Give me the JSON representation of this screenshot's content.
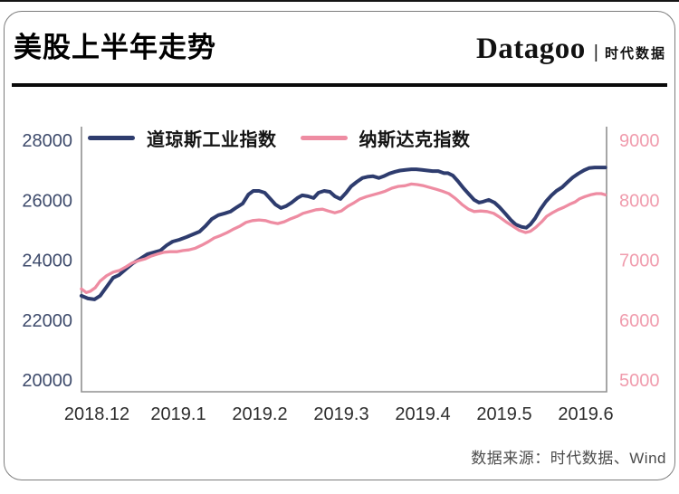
{
  "page": {
    "title": "美股上半年走势",
    "brand": {
      "name": "Datagoo",
      "separator": "|",
      "suffix": "时代数据"
    },
    "source_note": "数据来源：时代数据、Wind"
  },
  "chart_data": {
    "type": "line",
    "title": "美股上半年走势",
    "grid": false,
    "legend_position": "top",
    "legend": [
      {
        "label": "道琼斯工业指数",
        "color": "#2e3c6e"
      },
      {
        "label": "纳斯达克指数",
        "color": "#ee8ca2"
      }
    ],
    "x_axis": {
      "tick_labels": [
        "2018.12",
        "2019.1",
        "2019.2",
        "2019.3",
        "2019.4",
        "2019.5",
        "2019.6"
      ],
      "color": "#2d2d2d",
      "x_unit": "months offset from 2018.12 tick (0 = 2018.12, 6 = 2019.6)"
    },
    "y_axis_left": {
      "series": "道琼斯工业指数",
      "ticks": [
        20000,
        22000,
        24000,
        26000,
        28000
      ],
      "range": [
        20000,
        28000
      ],
      "color": "#3d4a6b"
    },
    "y_axis_right": {
      "series": "纳斯达克指数",
      "ticks": [
        5000,
        6000,
        7000,
        8000,
        9000
      ],
      "range": [
        5000,
        9000
      ],
      "color": "#f09cad"
    },
    "series": [
      {
        "name": "道琼斯工业指数",
        "axis": "left",
        "color": "#2e3c6e",
        "width": 4,
        "points": [
          [
            -0.19,
            22810
          ],
          [
            -0.11,
            22720
          ],
          [
            -0.03,
            22690
          ],
          [
            0.04,
            22810
          ],
          [
            0.12,
            23110
          ],
          [
            0.2,
            23410
          ],
          [
            0.27,
            23500
          ],
          [
            0.36,
            23710
          ],
          [
            0.44,
            23890
          ],
          [
            0.53,
            24040
          ],
          [
            0.62,
            24200
          ],
          [
            0.7,
            24260
          ],
          [
            0.78,
            24320
          ],
          [
            0.86,
            24500
          ],
          [
            0.93,
            24620
          ],
          [
            1.01,
            24680
          ],
          [
            1.1,
            24770
          ],
          [
            1.18,
            24860
          ],
          [
            1.26,
            24950
          ],
          [
            1.33,
            25130
          ],
          [
            1.41,
            25370
          ],
          [
            1.49,
            25500
          ],
          [
            1.57,
            25560
          ],
          [
            1.64,
            25620
          ],
          [
            1.72,
            25770
          ],
          [
            1.79,
            25890
          ],
          [
            1.86,
            26190
          ],
          [
            1.92,
            26310
          ],
          [
            1.99,
            26310
          ],
          [
            2.06,
            26250
          ],
          [
            2.12,
            26070
          ],
          [
            2.19,
            25860
          ],
          [
            2.26,
            25740
          ],
          [
            2.32,
            25800
          ],
          [
            2.39,
            25920
          ],
          [
            2.46,
            26070
          ],
          [
            2.52,
            26160
          ],
          [
            2.59,
            26130
          ],
          [
            2.66,
            26070
          ],
          [
            2.72,
            26250
          ],
          [
            2.79,
            26310
          ],
          [
            2.86,
            26280
          ],
          [
            2.92,
            26130
          ],
          [
            2.99,
            26040
          ],
          [
            3.06,
            26250
          ],
          [
            3.12,
            26460
          ],
          [
            3.19,
            26610
          ],
          [
            3.26,
            26740
          ],
          [
            3.32,
            26780
          ],
          [
            3.39,
            26800
          ],
          [
            3.46,
            26740
          ],
          [
            3.52,
            26800
          ],
          [
            3.59,
            26890
          ],
          [
            3.66,
            26950
          ],
          [
            3.72,
            26990
          ],
          [
            3.79,
            27010
          ],
          [
            3.86,
            27030
          ],
          [
            3.92,
            27030
          ],
          [
            3.99,
            27010
          ],
          [
            4.06,
            26990
          ],
          [
            4.12,
            26970
          ],
          [
            4.19,
            26970
          ],
          [
            4.26,
            26900
          ],
          [
            4.31,
            26900
          ],
          [
            4.37,
            26820
          ],
          [
            4.43,
            26640
          ],
          [
            4.5,
            26400
          ],
          [
            4.57,
            26190
          ],
          [
            4.63,
            26010
          ],
          [
            4.69,
            25920
          ],
          [
            4.74,
            25950
          ],
          [
            4.81,
            26010
          ],
          [
            4.88,
            25920
          ],
          [
            4.94,
            25770
          ],
          [
            5.01,
            25560
          ],
          [
            5.08,
            25340
          ],
          [
            5.14,
            25190
          ],
          [
            5.21,
            25110
          ],
          [
            5.27,
            25080
          ],
          [
            5.32,
            25190
          ],
          [
            5.38,
            25400
          ],
          [
            5.44,
            25680
          ],
          [
            5.51,
            25950
          ],
          [
            5.58,
            26160
          ],
          [
            5.64,
            26310
          ],
          [
            5.71,
            26430
          ],
          [
            5.78,
            26610
          ],
          [
            5.84,
            26760
          ],
          [
            5.91,
            26890
          ],
          [
            5.98,
            27000
          ],
          [
            6.04,
            27070
          ],
          [
            6.11,
            27090
          ],
          [
            6.18,
            27090
          ],
          [
            6.24,
            27090
          ]
        ]
      },
      {
        "name": "纳斯达克指数",
        "axis": "right",
        "color": "#ee8ca2",
        "width": 3.3,
        "points": [
          [
            -0.19,
            6520
          ],
          [
            -0.13,
            6460
          ],
          [
            -0.08,
            6480
          ],
          [
            -0.02,
            6540
          ],
          [
            0.04,
            6650
          ],
          [
            0.12,
            6740
          ],
          [
            0.2,
            6800
          ],
          [
            0.28,
            6830
          ],
          [
            0.36,
            6890
          ],
          [
            0.43,
            6950
          ],
          [
            0.51,
            6990
          ],
          [
            0.59,
            7020
          ],
          [
            0.67,
            7070
          ],
          [
            0.74,
            7100
          ],
          [
            0.82,
            7130
          ],
          [
            0.9,
            7140
          ],
          [
            0.98,
            7140
          ],
          [
            1.06,
            7160
          ],
          [
            1.13,
            7170
          ],
          [
            1.21,
            7200
          ],
          [
            1.29,
            7250
          ],
          [
            1.37,
            7310
          ],
          [
            1.44,
            7370
          ],
          [
            1.52,
            7410
          ],
          [
            1.6,
            7460
          ],
          [
            1.68,
            7520
          ],
          [
            1.76,
            7570
          ],
          [
            1.83,
            7630
          ],
          [
            1.91,
            7660
          ],
          [
            1.99,
            7670
          ],
          [
            2.07,
            7660
          ],
          [
            2.14,
            7630
          ],
          [
            2.22,
            7610
          ],
          [
            2.3,
            7640
          ],
          [
            2.38,
            7690
          ],
          [
            2.46,
            7730
          ],
          [
            2.53,
            7780
          ],
          [
            2.61,
            7810
          ],
          [
            2.69,
            7840
          ],
          [
            2.77,
            7850
          ],
          [
            2.84,
            7820
          ],
          [
            2.92,
            7790
          ],
          [
            3.0,
            7820
          ],
          [
            3.08,
            7900
          ],
          [
            3.16,
            7960
          ],
          [
            3.23,
            8020
          ],
          [
            3.31,
            8060
          ],
          [
            3.39,
            8090
          ],
          [
            3.47,
            8120
          ],
          [
            3.54,
            8150
          ],
          [
            3.62,
            8200
          ],
          [
            3.7,
            8230
          ],
          [
            3.78,
            8240
          ],
          [
            3.86,
            8270
          ],
          [
            3.93,
            8260
          ],
          [
            4.01,
            8240
          ],
          [
            4.09,
            8210
          ],
          [
            4.17,
            8180
          ],
          [
            4.24,
            8150
          ],
          [
            4.32,
            8110
          ],
          [
            4.4,
            8030
          ],
          [
            4.48,
            7930
          ],
          [
            4.56,
            7850
          ],
          [
            4.63,
            7810
          ],
          [
            4.71,
            7820
          ],
          [
            4.79,
            7810
          ],
          [
            4.87,
            7780
          ],
          [
            4.94,
            7720
          ],
          [
            5.02,
            7640
          ],
          [
            5.1,
            7570
          ],
          [
            5.18,
            7500
          ],
          [
            5.26,
            7460
          ],
          [
            5.32,
            7480
          ],
          [
            5.39,
            7550
          ],
          [
            5.46,
            7640
          ],
          [
            5.52,
            7730
          ],
          [
            5.59,
            7790
          ],
          [
            5.66,
            7840
          ],
          [
            5.73,
            7880
          ],
          [
            5.8,
            7930
          ],
          [
            5.87,
            7970
          ],
          [
            5.92,
            8020
          ],
          [
            5.99,
            8060
          ],
          [
            6.06,
            8090
          ],
          [
            6.13,
            8110
          ],
          [
            6.19,
            8110
          ],
          [
            6.24,
            8090
          ]
        ]
      }
    ]
  }
}
